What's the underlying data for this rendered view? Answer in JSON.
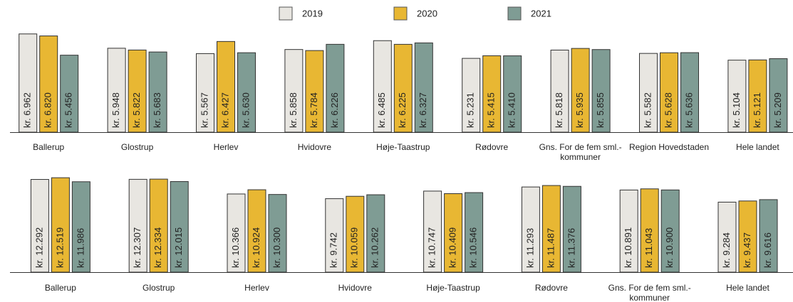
{
  "chart_data": [
    {
      "type": "bar",
      "categories": [
        "Ballerup",
        "Glostrup",
        "Herlev",
        "Hvidovre",
        "Høje-Taastrup",
        "Rødovre",
        "Gns. For de fem sml.-kommuner",
        "Region Hovedstaden",
        "Hele landet"
      ],
      "series": [
        {
          "name": "2019",
          "color": "#e8e6e1",
          "values": [
            6962,
            5948,
            5567,
            5858,
            6485,
            5231,
            5818,
            5582,
            5104
          ],
          "value_labels": [
            "kr. 6.962",
            "kr. 5.948",
            "kr. 5.567",
            "kr. 5.858",
            "kr. 6.485",
            "kr. 5.231",
            "kr. 5.818",
            "kr. 5.582",
            "kr. 5.104"
          ]
        },
        {
          "name": "2020",
          "color": "#e8b733",
          "values": [
            6820,
            5822,
            6427,
            5784,
            6225,
            5415,
            5935,
            5628,
            5121
          ],
          "value_labels": [
            "kr. 6.820",
            "kr. 5.822",
            "kr. 6.427",
            "kr. 5.784",
            "kr. 6.225",
            "kr. 5.415",
            "kr. 5.935",
            "kr. 5.628",
            "kr. 5.121"
          ]
        },
        {
          "name": "2021",
          "color": "#7f9c94",
          "values": [
            5456,
            5683,
            5630,
            6226,
            6327,
            5410,
            5855,
            5636,
            5209
          ],
          "value_labels": [
            "kr. 5.456",
            "kr. 5.683",
            "kr. 5.630",
            "kr. 6.226",
            "kr. 6.327",
            "kr. 5.410",
            "kr. 5.855",
            "kr. 5.636",
            "kr. 5.209"
          ]
        }
      ],
      "ylim": [
        0,
        7100
      ]
    },
    {
      "type": "bar",
      "categories": [
        "Ballerup",
        "Glostrup",
        "Herlev",
        "Hvidovre",
        "Høje-Taastrup",
        "Rødovre",
        "Gns. For de fem sml.-kommuner",
        "Hele landet"
      ],
      "series": [
        {
          "name": "2019",
          "color": "#e8e6e1",
          "values": [
            12292,
            12307,
            10366,
            9742,
            10747,
            11293,
            10891,
            9284
          ],
          "value_labels": [
            "kr. 12.292",
            "kr. 12.307",
            "kr. 10.366",
            "kr. 9.742",
            "kr. 10.747",
            "kr. 11.293",
            "kr. 10.891",
            "kr. 9.284"
          ]
        },
        {
          "name": "2020",
          "color": "#e8b733",
          "values": [
            12519,
            12334,
            10924,
            10059,
            10409,
            11487,
            11043,
            9437
          ],
          "value_labels": [
            "kr. 12.519",
            "kr. 12.334",
            "kr. 10.924",
            "kr. 10.059",
            "kr. 10.409",
            "kr. 11.487",
            "kr. 11.043",
            "kr. 9.437"
          ]
        },
        {
          "name": "2021",
          "color": "#7f9c94",
          "values": [
            11986,
            12015,
            10300,
            10262,
            10546,
            11376,
            10900,
            9616
          ],
          "value_labels": [
            "kr. 11.986",
            "kr. 12.015",
            "kr. 10.300",
            "kr. 10.262",
            "kr. 10.546",
            "kr. 11.376",
            "kr. 10.900",
            "kr. 9.616"
          ]
        }
      ],
      "ylim": [
        0,
        13000
      ]
    }
  ]
}
